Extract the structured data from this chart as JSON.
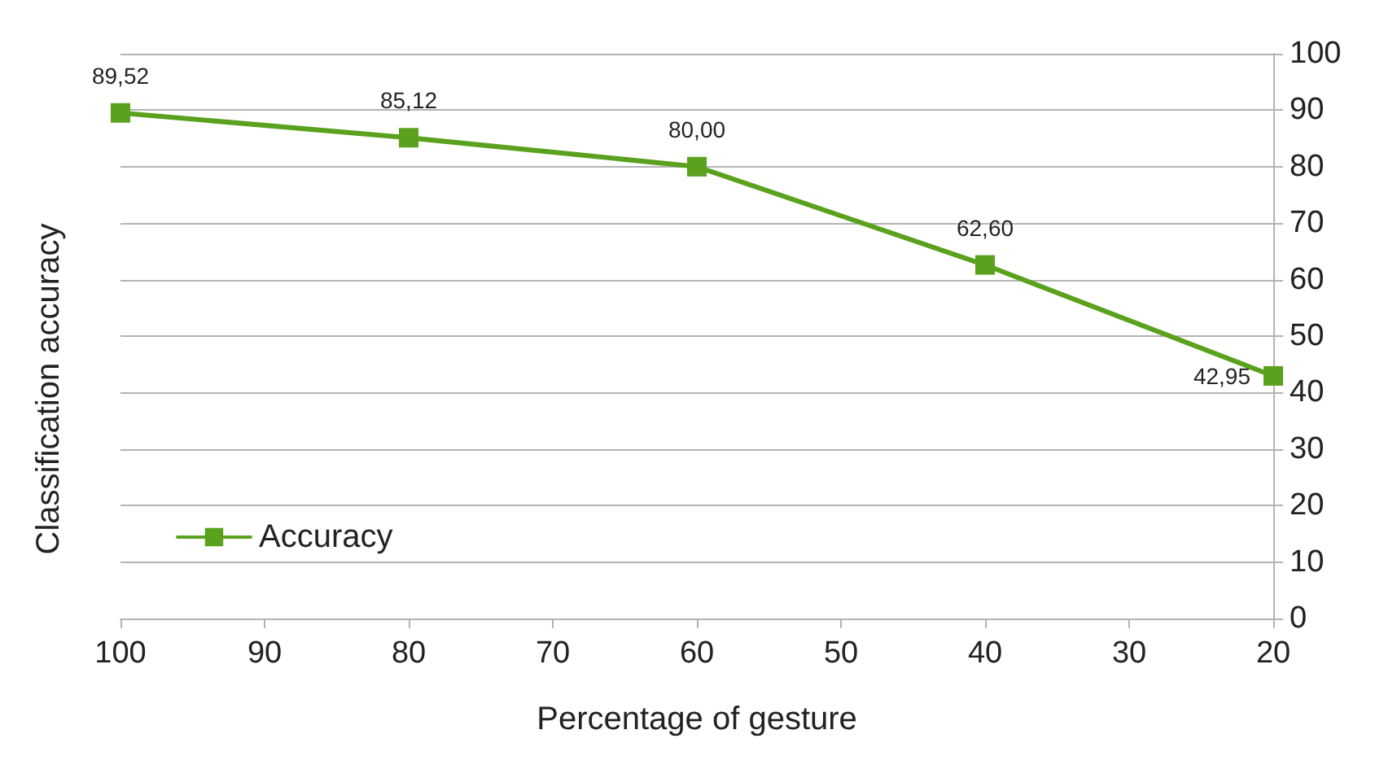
{
  "chart_data": {
    "type": "line",
    "xlabel": "Percentage of gesture",
    "ylabel": "Classification accuracy",
    "x": [
      100,
      80,
      60,
      40,
      20
    ],
    "series": [
      {
        "name": "Accuracy",
        "color": "#5aa11e",
        "values": [
          89.52,
          85.12,
          80.0,
          62.6,
          42.95
        ],
        "value_labels": [
          "89,52",
          "85,12",
          "80,00",
          "62,60",
          "42,95"
        ]
      }
    ],
    "xlim": [
      100,
      20
    ],
    "xticks": [
      100,
      90,
      80,
      70,
      60,
      50,
      40,
      30,
      20
    ],
    "ylim": [
      0,
      100
    ],
    "yticks": [
      0,
      10,
      20,
      30,
      40,
      50,
      60,
      70,
      80,
      90,
      100
    ],
    "grid": "y",
    "legend": "bottom left",
    "marker": "square",
    "line_style": "solid"
  }
}
